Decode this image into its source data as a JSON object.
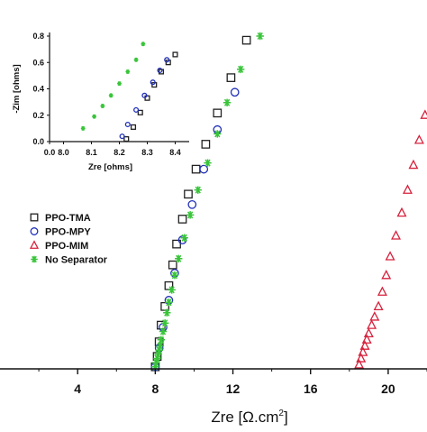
{
  "chart_data": [
    {
      "type": "scatter",
      "xlabel": "Zre [Ω.cm²]",
      "xlabel_main": "Zre [",
      "xlabel_unit": "Ω.cm",
      "xlabel_sup": "2",
      "xlabel_close": "]",
      "ylabel": "",
      "xlim": [
        0,
        22
      ],
      "ylim": [
        0,
        16
      ],
      "x_ticks": [
        4,
        8,
        12,
        16,
        20
      ],
      "legend_position": "left",
      "colors": {
        "PPO-TMA": "#222222",
        "PPO-MPY": "#1f2fb8",
        "PPO-MIM": "#d6213c",
        "No Separator": "#39c43a"
      },
      "series": [
        {
          "name": "PPO-TMA",
          "marker": "square",
          "x": [
            8.0,
            8.1,
            8.2,
            8.3,
            8.5,
            8.7,
            8.9,
            9.1,
            9.4,
            9.7,
            10.1,
            10.6,
            11.2,
            11.9,
            12.7
          ],
          "y": [
            0.1,
            0.6,
            1.3,
            2.1,
            3.0,
            4.0,
            5.0,
            6.0,
            7.2,
            8.4,
            9.6,
            10.8,
            12.3,
            14.0,
            15.8
          ]
        },
        {
          "name": "PPO-MPY",
          "marker": "circle",
          "x": [
            8.0,
            8.2,
            8.4,
            8.7,
            9.0,
            9.4,
            9.9,
            10.5,
            11.2,
            12.1
          ],
          "y": [
            0.1,
            1.0,
            2.0,
            3.3,
            4.6,
            6.2,
            7.9,
            9.6,
            11.5,
            13.3
          ]
        },
        {
          "name": "PPO-MIM",
          "marker": "triangle",
          "x": [
            18.5,
            18.6,
            18.7,
            18.8,
            18.9,
            19.0,
            19.15,
            19.3,
            19.5,
            19.7,
            19.9,
            20.1,
            20.4,
            20.7,
            21.0,
            21.3,
            21.6,
            21.9
          ],
          "y": [
            0.2,
            0.5,
            0.8,
            1.1,
            1.4,
            1.7,
            2.1,
            2.5,
            3.0,
            3.7,
            4.5,
            5.4,
            6.4,
            7.5,
            8.6,
            9.8,
            11.0,
            12.2
          ]
        },
        {
          "name": "No Separator",
          "marker": "star",
          "x": [
            8.0,
            8.05,
            8.1,
            8.15,
            8.2,
            8.25,
            8.3,
            8.4,
            8.5,
            8.6,
            8.7,
            8.85,
            9.0,
            9.2,
            9.5,
            9.8,
            10.2,
            10.7,
            11.2,
            11.7,
            12.4,
            13.4
          ],
          "y": [
            0.1,
            0.3,
            0.5,
            0.7,
            0.9,
            1.1,
            1.4,
            1.8,
            2.2,
            2.7,
            3.2,
            3.8,
            4.5,
            5.3,
            6.3,
            7.4,
            8.6,
            9.9,
            11.3,
            12.8,
            14.4,
            16.0
          ]
        }
      ]
    },
    {
      "type": "scatter",
      "xlabel": "Zre [ohms]",
      "ylabel": "-Zim [ohms]",
      "xlim": [
        7.95,
        8.45
      ],
      "ylim": [
        0,
        0.8
      ],
      "x_ticks": [
        "0.0",
        "8.0",
        "8.1",
        "8.2",
        "8.3",
        "8.4"
      ],
      "x_tick_values": [
        7.95,
        8.0,
        8.1,
        8.2,
        8.3,
        8.4
      ],
      "y_ticks": [
        "0.0",
        "0.2",
        "0.4",
        "0.6",
        "0.8"
      ],
      "y_tick_values": [
        0,
        0.2,
        0.4,
        0.6,
        0.8
      ],
      "series": [
        {
          "name": "PPO-TMA",
          "marker": "square",
          "x": [
            8.225,
            8.25,
            8.275,
            8.3,
            8.325,
            8.35,
            8.375,
            8.4
          ],
          "y": [
            0.02,
            0.11,
            0.22,
            0.33,
            0.43,
            0.53,
            0.6,
            0.66
          ]
        },
        {
          "name": "PPO-MPY",
          "marker": "circle",
          "x": [
            8.21,
            8.23,
            8.26,
            8.29,
            8.32,
            8.345,
            8.37
          ],
          "y": [
            0.04,
            0.13,
            0.24,
            0.35,
            0.45,
            0.54,
            0.62
          ]
        },
        {
          "name": "No Separator",
          "marker": "star",
          "x": [
            8.07,
            8.11,
            8.14,
            8.17,
            8.2,
            8.23,
            8.26,
            8.285
          ],
          "y": [
            0.1,
            0.19,
            0.27,
            0.35,
            0.44,
            0.53,
            0.62,
            0.74
          ]
        }
      ]
    }
  ]
}
